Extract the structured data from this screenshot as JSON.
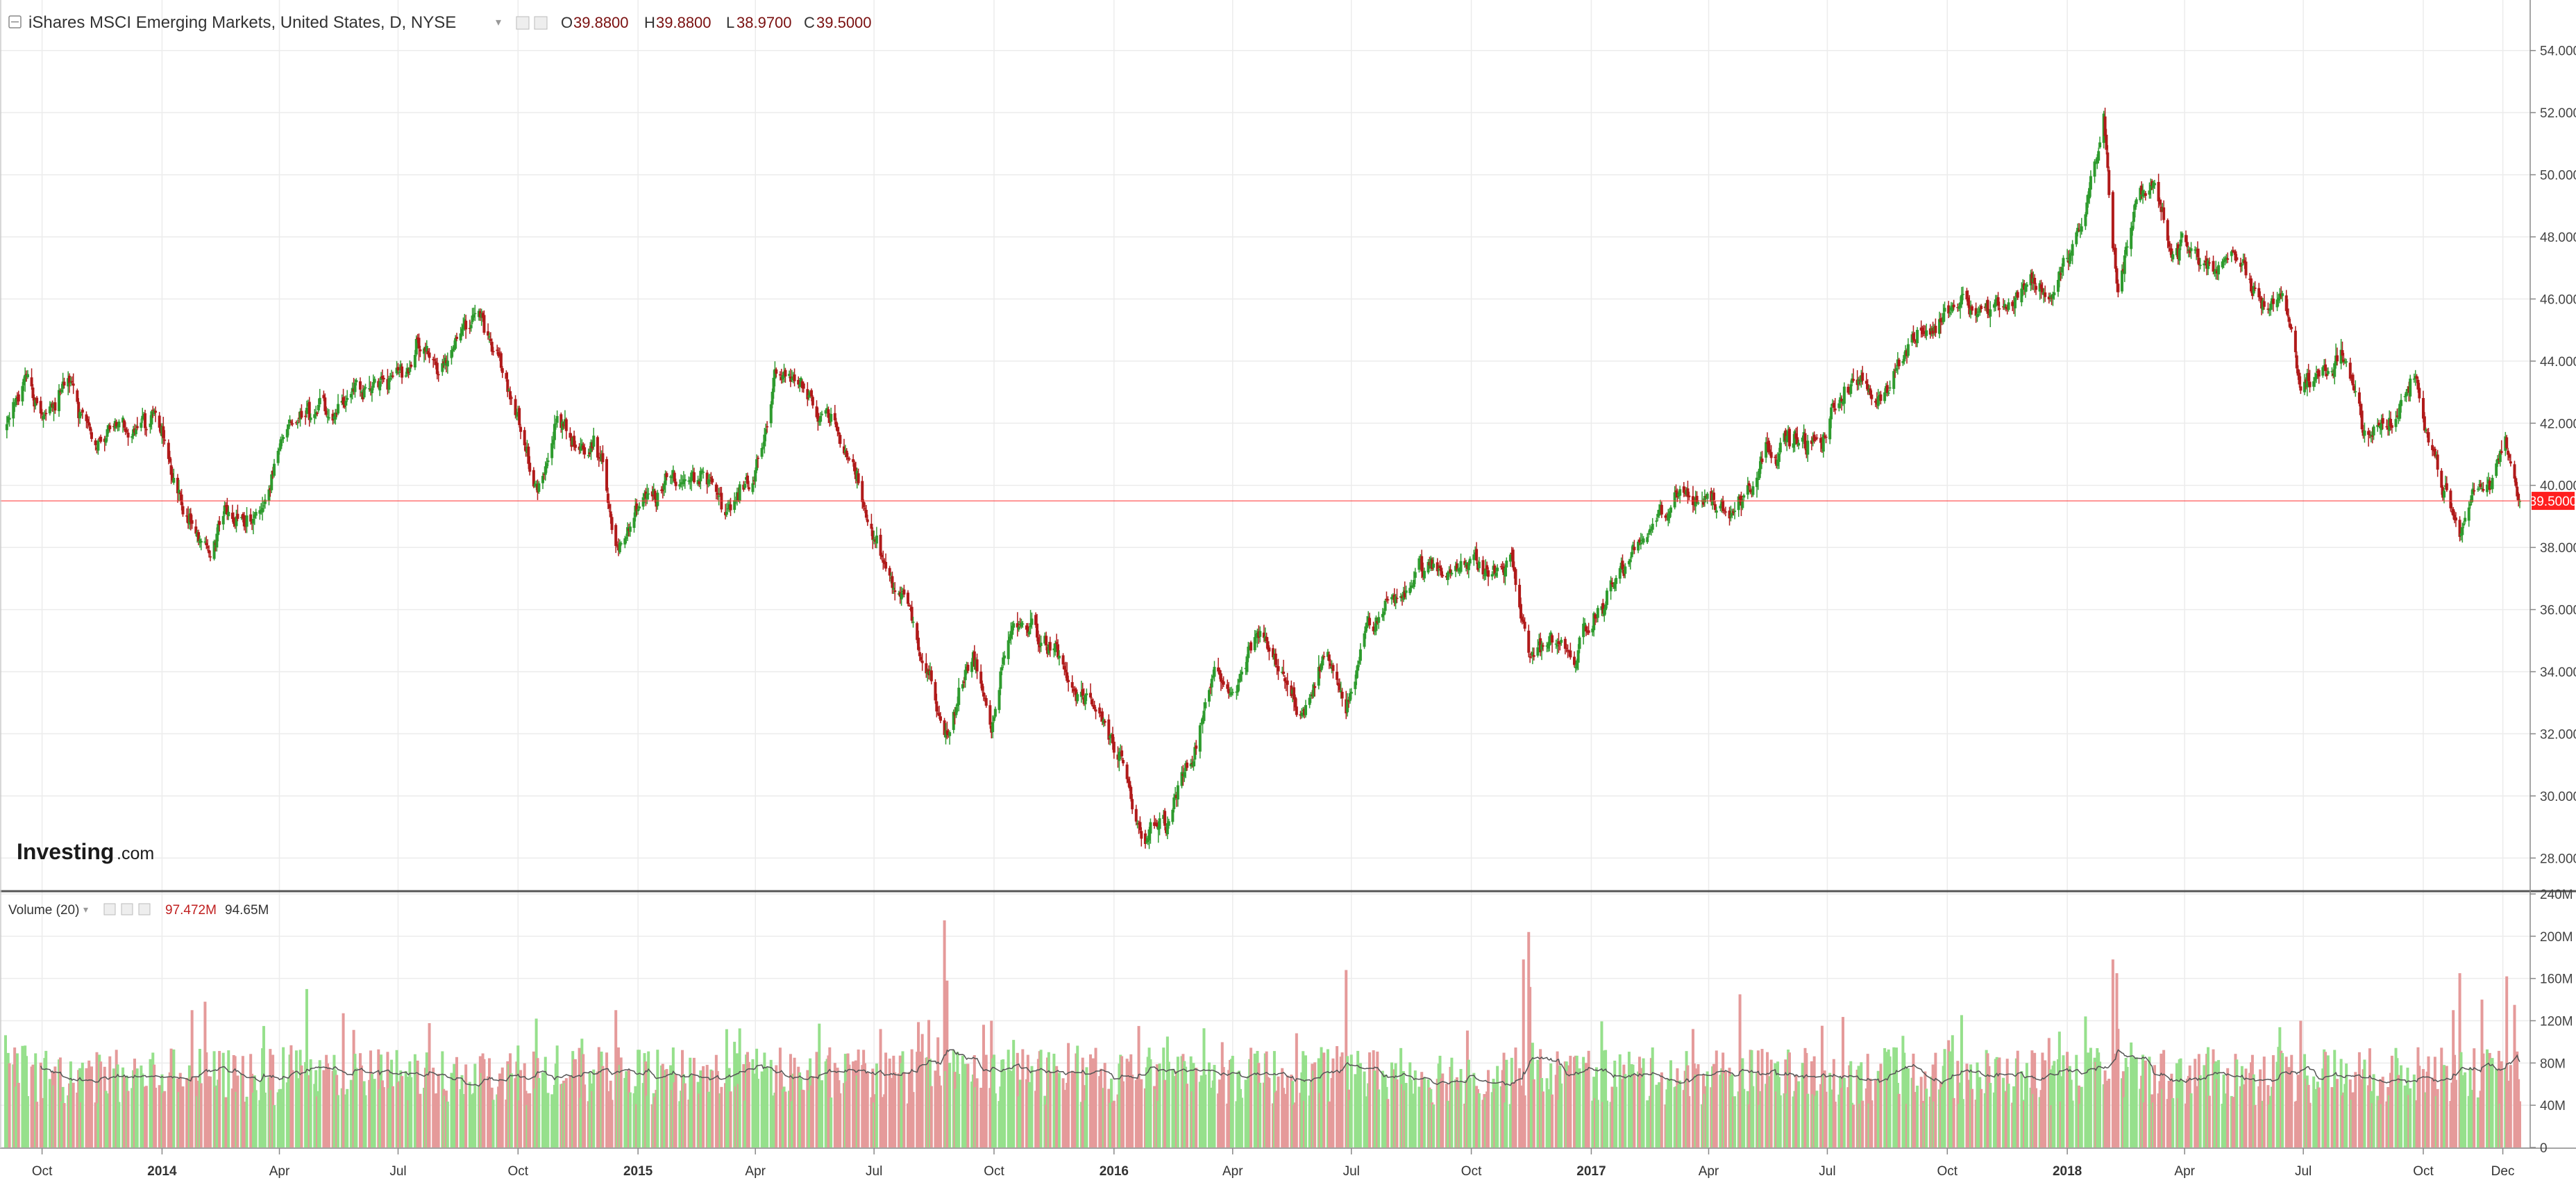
{
  "header": {
    "title": "iShares MSCI Emerging Markets, United States, D, NYSE",
    "o_label": "O",
    "o_value": "39.8800",
    "h_label": "H",
    "h_value": "39.8800",
    "l_label": "L",
    "l_value": "38.9700",
    "c_label": "C",
    "c_value": "39.5000"
  },
  "volume_header": {
    "title": "Volume (20)",
    "value1": "97.472M",
    "value2": "94.65M"
  },
  "logo": {
    "main": "Investing",
    "suffix": ".com"
  },
  "colors": {
    "up": "#2e9b2e",
    "down": "#b01a1a",
    "vol_up": "#96e08c",
    "vol_down": "#e59a9a",
    "price_line": "#ff3b3b",
    "price_tag": "#ff1f1f",
    "grid": "#ececec",
    "ma_line": "#555555",
    "header_value": "#7a1010"
  },
  "chart_data": [
    {
      "type": "candlestick",
      "name": "iShares MSCI Emerging Markets",
      "ylim": [
        27,
        55
      ],
      "yticks": [
        "28.0000",
        "30.0000",
        "32.0000",
        "34.0000",
        "36.0000",
        "38.0000",
        "40.0000",
        "42.0000",
        "44.0000",
        "46.0000",
        "48.0000",
        "50.0000",
        "52.0000",
        "54.0000"
      ],
      "current_price": "39.5000",
      "x_tick_labels": [
        "Oct",
        "2014",
        "Apr",
        "Jul",
        "Oct",
        "2015",
        "Apr",
        "Jul",
        "Oct",
        "2016",
        "Apr",
        "Jul",
        "Oct",
        "2017",
        "Apr",
        "Jul",
        "Oct",
        "2018",
        "Apr",
        "Jul",
        "Oct",
        "Dec"
      ],
      "x_tick_months": [
        "2013-10",
        "2014-01",
        "2014-04",
        "2014-07",
        "2014-10",
        "2015-01",
        "2015-04",
        "2015-07",
        "2015-10",
        "2016-01",
        "2016-04",
        "2016-07",
        "2016-10",
        "2017-01",
        "2017-04",
        "2017-07",
        "2017-10",
        "2018-01",
        "2018-04",
        "2018-07",
        "2018-10",
        "2018-12"
      ],
      "x_range": [
        "2013-09-03",
        "2018-12-14"
      ],
      "close_path": [
        [
          "2013-09-03",
          41.6
        ],
        [
          "2013-09-20",
          43.6
        ],
        [
          "2013-10-04",
          42.0
        ],
        [
          "2013-10-22",
          43.4
        ],
        [
          "2013-11-12",
          41.3
        ],
        [
          "2013-12-06",
          41.8
        ],
        [
          "2013-12-27",
          42.0
        ],
        [
          "2014-01-10",
          40.6
        ],
        [
          "2014-02-04",
          37.6
        ],
        [
          "2014-02-20",
          39.3
        ],
        [
          "2014-03-14",
          38.7
        ],
        [
          "2014-04-01",
          40.8
        ],
        [
          "2014-04-15",
          42.1
        ],
        [
          "2014-05-08",
          42.3
        ],
        [
          "2014-05-27",
          43.3
        ],
        [
          "2014-06-10",
          43.6
        ],
        [
          "2014-06-26",
          43.4
        ],
        [
          "2014-07-15",
          44.4
        ],
        [
          "2014-08-01",
          43.6
        ],
        [
          "2014-08-20",
          45.0
        ],
        [
          "2014-09-04",
          45.6
        ],
        [
          "2014-09-19",
          43.6
        ],
        [
          "2014-10-03",
          41.7
        ],
        [
          "2014-10-16",
          40.0
        ],
        [
          "2014-10-31",
          42.0
        ],
        [
          "2014-11-14",
          41.6
        ],
        [
          "2014-11-28",
          41.5
        ],
        [
          "2014-12-16",
          38.1
        ],
        [
          "2014-12-31",
          39.0
        ],
        [
          "2015-01-20",
          39.8
        ],
        [
          "2015-02-10",
          40.4
        ],
        [
          "2015-02-26",
          40.5
        ],
        [
          "2015-03-12",
          39.1
        ],
        [
          "2015-03-31",
          40.3
        ],
        [
          "2015-04-15",
          43.3
        ],
        [
          "2015-04-28",
          43.5
        ],
        [
          "2015-05-14",
          43.0
        ],
        [
          "2015-06-02",
          41.6
        ],
        [
          "2015-06-18",
          40.0
        ],
        [
          "2015-07-08",
          37.6
        ],
        [
          "2015-07-24",
          36.2
        ],
        [
          "2015-08-12",
          34.3
        ],
        [
          "2015-08-24",
          31.4
        ],
        [
          "2015-09-04",
          33.5
        ],
        [
          "2015-09-18",
          34.1
        ],
        [
          "2015-09-29",
          32.3
        ],
        [
          "2015-10-13",
          35.1
        ],
        [
          "2015-10-30",
          35.6
        ],
        [
          "2015-11-16",
          34.5
        ],
        [
          "2015-12-03",
          33.2
        ],
        [
          "2015-12-22",
          32.5
        ],
        [
          "2016-01-07",
          30.6
        ],
        [
          "2016-01-20",
          28.8
        ],
        [
          "2016-02-11",
          29.0
        ],
        [
          "2016-03-01",
          31.1
        ],
        [
          "2016-03-18",
          33.8
        ],
        [
          "2016-04-05",
          33.4
        ],
        [
          "2016-04-20",
          35.1
        ],
        [
          "2016-05-10",
          33.5
        ],
        [
          "2016-05-24",
          32.9
        ],
        [
          "2016-06-08",
          34.5
        ],
        [
          "2016-06-27",
          33.0
        ],
        [
          "2016-07-12",
          35.1
        ],
        [
          "2016-08-02",
          36.4
        ],
        [
          "2016-08-22",
          37.5
        ],
        [
          "2016-09-09",
          37.0
        ],
        [
          "2016-09-23",
          37.9
        ],
        [
          "2016-10-14",
          37.1
        ],
        [
          "2016-11-01",
          37.5
        ],
        [
          "2016-11-14",
          34.5
        ],
        [
          "2016-11-28",
          35.1
        ],
        [
          "2016-12-15",
          34.4
        ],
        [
          "2016-12-30",
          35.2
        ],
        [
          "2017-01-20",
          37.0
        ],
        [
          "2017-02-14",
          38.5
        ],
        [
          "2017-03-01",
          39.1
        ],
        [
          "2017-03-17",
          39.8
        ],
        [
          "2017-04-03",
          39.6
        ],
        [
          "2017-04-20",
          39.1
        ],
        [
          "2017-05-16",
          41.4
        ],
        [
          "2017-06-05",
          41.5
        ],
        [
          "2017-06-27",
          41.2
        ],
        [
          "2017-07-14",
          43.3
        ],
        [
          "2017-08-10",
          43.0
        ],
        [
          "2017-08-30",
          44.3
        ],
        [
          "2017-09-20",
          45.0
        ],
        [
          "2017-10-13",
          46.3
        ],
        [
          "2017-10-31",
          45.7
        ],
        [
          "2017-11-16",
          46.0
        ],
        [
          "2017-12-05",
          46.7
        ],
        [
          "2017-12-22",
          46.1
        ],
        [
          "2018-01-05",
          47.6
        ],
        [
          "2018-01-17",
          49.0
        ],
        [
          "2018-01-29",
          51.8
        ],
        [
          "2018-02-05",
          47.5
        ],
        [
          "2018-02-09",
          46.4
        ],
        [
          "2018-02-26",
          49.7
        ],
        [
          "2018-03-09",
          49.5
        ],
        [
          "2018-03-22",
          47.5
        ],
        [
          "2018-04-09",
          47.7
        ],
        [
          "2018-04-26",
          46.9
        ],
        [
          "2018-05-14",
          47.0
        ],
        [
          "2018-05-31",
          45.8
        ],
        [
          "2018-06-15",
          46.3
        ],
        [
          "2018-06-29",
          43.2
        ],
        [
          "2018-07-17",
          43.8
        ],
        [
          "2018-08-03",
          44.2
        ],
        [
          "2018-08-15",
          41.8
        ],
        [
          "2018-09-07",
          42.0
        ],
        [
          "2018-09-27",
          43.2
        ],
        [
          "2018-10-12",
          40.7
        ],
        [
          "2018-10-29",
          38.2
        ],
        [
          "2018-11-09",
          39.9
        ],
        [
          "2018-11-22",
          40.0
        ],
        [
          "2018-12-03",
          41.7
        ],
        [
          "2018-12-14",
          39.5
        ]
      ]
    },
    {
      "type": "bar",
      "name": "Volume (20)",
      "ylim": [
        0,
        240
      ],
      "yticks": [
        "0",
        "40M",
        "80M",
        "120M",
        "160M",
        "200M",
        "240M"
      ],
      "unit": "M",
      "baseline_range": [
        40,
        95
      ],
      "ma_period": 20,
      "spikes": [
        [
          "2014-01-24",
          130
        ],
        [
          "2014-02-03",
          138
        ],
        [
          "2014-03-20",
          115
        ],
        [
          "2014-04-22",
          150
        ],
        [
          "2014-10-15",
          122
        ],
        [
          "2014-12-15",
          130
        ],
        [
          "2015-03-10",
          112
        ],
        [
          "2015-08-24",
          215
        ],
        [
          "2015-08-26",
          158
        ],
        [
          "2015-09-29",
          120
        ],
        [
          "2016-01-20",
          115
        ],
        [
          "2016-02-11",
          105
        ],
        [
          "2016-06-27",
          168
        ],
        [
          "2016-11-10",
          178
        ],
        [
          "2016-11-14",
          204
        ],
        [
          "2016-11-15",
          152
        ],
        [
          "2017-04-25",
          145
        ],
        [
          "2018-02-05",
          178
        ],
        [
          "2018-02-08",
          165
        ],
        [
          "2018-06-29",
          120
        ],
        [
          "2018-10-24",
          130
        ],
        [
          "2018-10-29",
          165
        ],
        [
          "2018-11-15",
          140
        ],
        [
          "2018-12-04",
          162
        ],
        [
          "2018-12-10",
          135
        ]
      ]
    }
  ]
}
